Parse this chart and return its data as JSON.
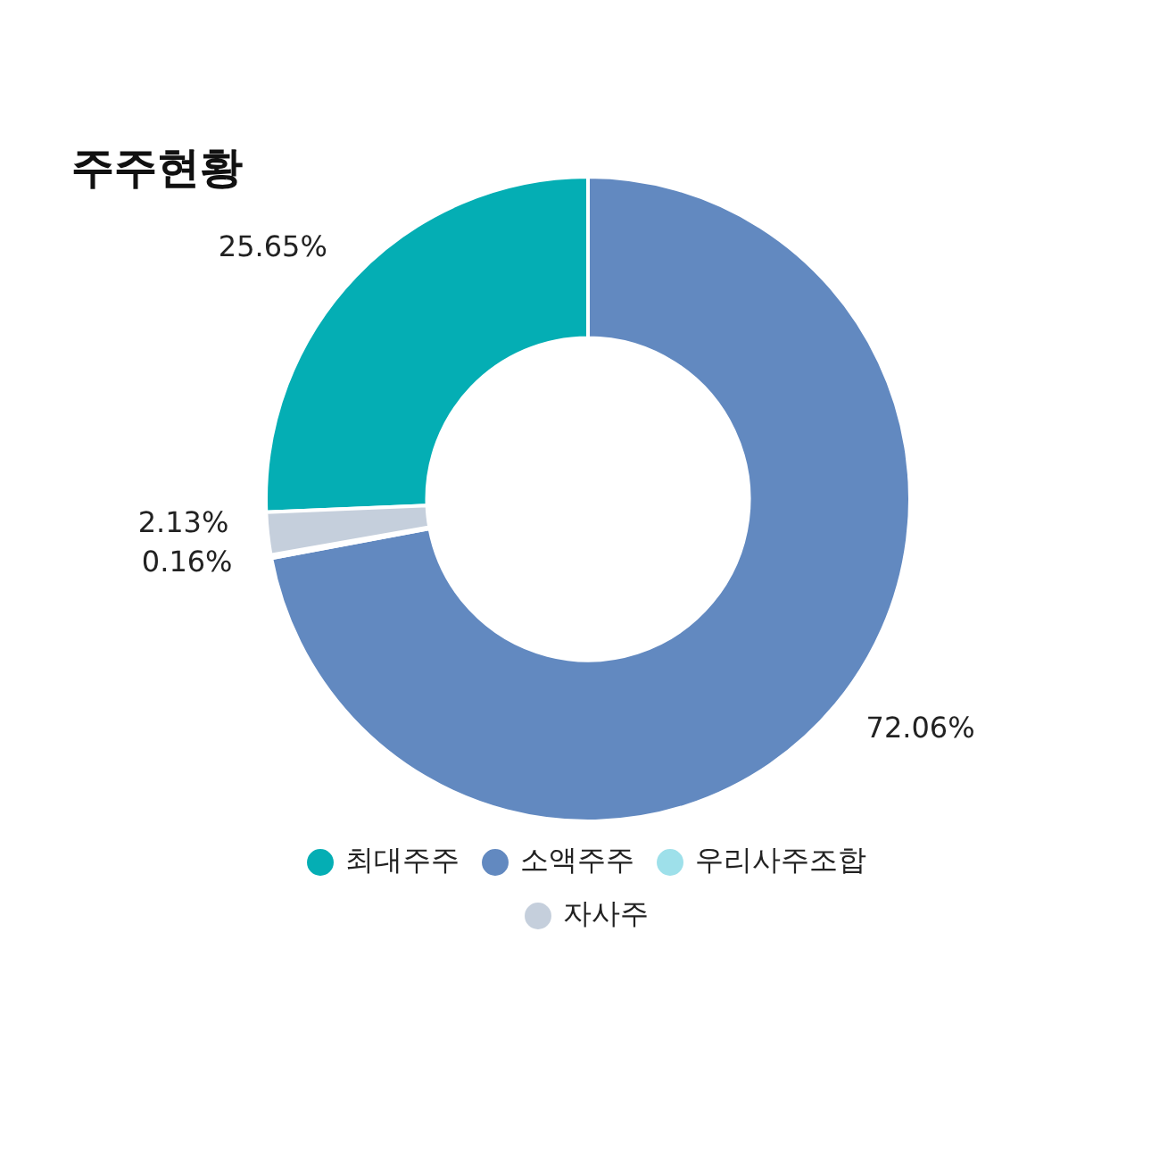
{
  "chart_data": {
    "type": "donut",
    "title": "주주현황",
    "categories": [
      "최대주주",
      "소액주주",
      "우리사주조합",
      "자사주"
    ],
    "values": [
      25.65,
      72.06,
      0.16,
      2.13
    ],
    "colors": [
      "#04aeb4",
      "#6289c0",
      "#9ee0ea",
      "#c5cfdc"
    ],
    "value_labels": [
      "25.65%",
      "72.06%",
      "0.16%",
      "2.13%"
    ],
    "legend": "bottom"
  }
}
